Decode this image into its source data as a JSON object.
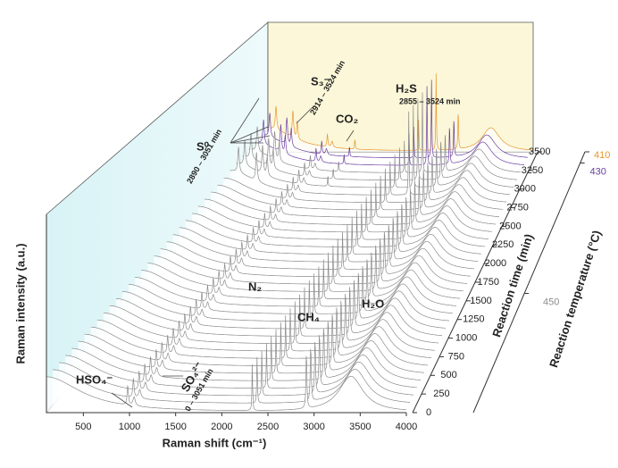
{
  "chart_data": {
    "type": "waterfall",
    "x_label": "Raman shift (cm⁻¹)",
    "y_label": "Raman intensity (a.u.)",
    "z_label": "Reaction time (min)",
    "temperature_label": "Reaction temperature (°C)",
    "xlim": [
      100,
      4000
    ],
    "xticks": [
      500,
      1000,
      1500,
      2000,
      2500,
      3000,
      3500,
      4000
    ],
    "ylim": [
      0,
      220
    ],
    "zlim": [
      0,
      3500
    ],
    "zticks": [
      0,
      250,
      500,
      750,
      1000,
      1250,
      1500,
      1750,
      2000,
      2250,
      2500,
      2750,
      3000,
      3250,
      3500
    ],
    "temperatures": [
      {
        "value": 450,
        "color": "#8c8c8c",
        "times": [
          0,
          100,
          200,
          300,
          400,
          500,
          600,
          700,
          800,
          900,
          1000,
          1100,
          1200,
          1300,
          1400,
          1500,
          1600,
          1700,
          1800,
          1900,
          2000,
          2100,
          2200,
          2300,
          2400,
          2500,
          2600,
          2700,
          2800,
          2900,
          3000,
          3100,
          3200
        ]
      },
      {
        "value": 430,
        "color": "#6b3fa0",
        "times": [
          3300,
          3400
        ]
      },
      {
        "value": 410,
        "color": "#e8962e",
        "times": [
          3500
        ]
      }
    ],
    "peaks": [
      {
        "position": 100,
        "height": 40,
        "width": 450,
        "start": 0
      },
      {
        "position": 981,
        "height": 22,
        "width": 8,
        "start": 0
      },
      {
        "position": 1050,
        "height": 10,
        "width": 15,
        "start": 0
      },
      {
        "position": 2331,
        "height": 55,
        "width": 4,
        "start": 0
      },
      {
        "position": 2917,
        "height": 65,
        "width": 6,
        "start": 0
      },
      {
        "position": 3400,
        "height": 40,
        "width": 160,
        "start": 0
      },
      {
        "position": 220,
        "height": 40,
        "width": 12,
        "start": 2890
      },
      {
        "position": 470,
        "height": 45,
        "width": 12,
        "start": 2890
      },
      {
        "position": 535,
        "height": 30,
        "width": 10,
        "start": 2914
      },
      {
        "position": 1388,
        "height": 18,
        "width": 5,
        "start": 2914
      },
      {
        "position": 2590,
        "height": 130,
        "width": 5,
        "start": 2855
      }
    ],
    "annotations": [
      "HSO₄⁻",
      "SO₄²⁻",
      "0 – 3051 min",
      "N₂",
      "CH₄",
      "H₂O",
      "S⁰",
      "2890 – 3051 min",
      "S₃⁻",
      "2914 – 3524 min",
      "CO₂",
      "H₂S",
      "2855 – 3524 min"
    ]
  }
}
